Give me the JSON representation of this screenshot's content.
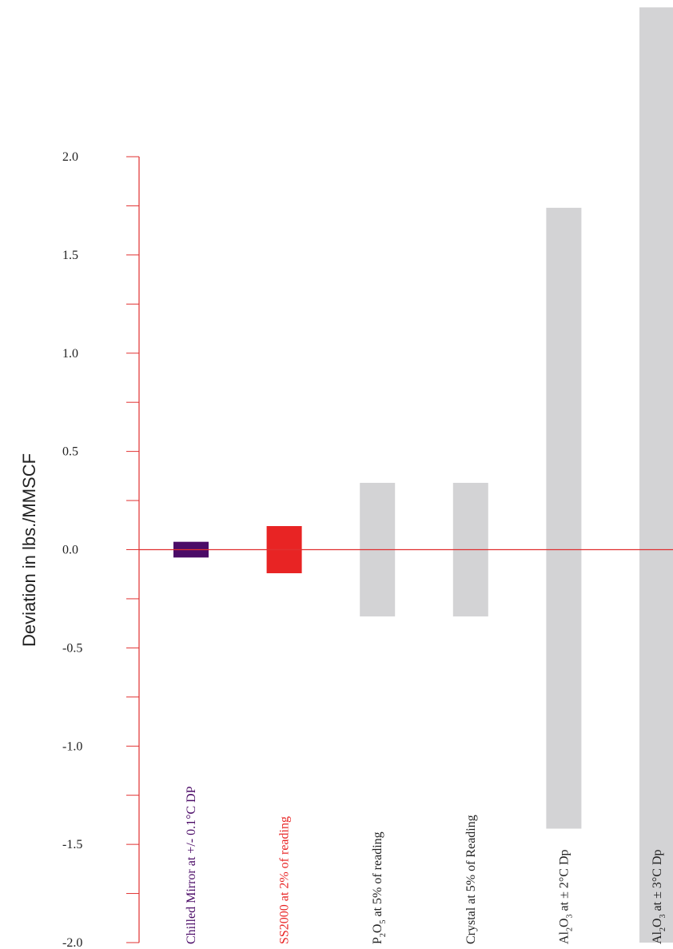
{
  "chart_data": {
    "type": "bar",
    "title": "",
    "xlabel": "",
    "ylabel": "Deviation in lbs./MMSCF",
    "ylim": [
      -2.0,
      2.0
    ],
    "yticks": [
      "2.0",
      "1.5",
      "1.0",
      "0.5",
      "0.0",
      "-0.5",
      "-1.0",
      "-1.5",
      "-2.0"
    ],
    "grid": false,
    "series": [
      {
        "label_parts": [
          {
            "t": "Chilled Mirror at +/- 0.1°C DP"
          }
        ],
        "low": -0.04,
        "high": 0.04,
        "color": "#4b0b67",
        "label_color": "#4b0b67"
      },
      {
        "label_parts": [
          {
            "t": "SS2000 at 2% of reading"
          }
        ],
        "low": -0.12,
        "high": 0.12,
        "color": "#e82424",
        "label_color": "#e82424"
      },
      {
        "label_parts": [
          {
            "t": "P"
          },
          {
            "t": "2",
            "sub": true
          },
          {
            "t": "O"
          },
          {
            "t": "5",
            "sub": true
          },
          {
            "t": " at 5% of reading"
          }
        ],
        "low": -0.34,
        "high": 0.34,
        "color": "#d3d3d5",
        "label_color": "#222222"
      },
      {
        "label_parts": [
          {
            "t": "Crystal at 5% of Reading"
          }
        ],
        "low": -0.34,
        "high": 0.34,
        "color": "#d3d3d5",
        "label_color": "#222222"
      },
      {
        "label_parts": [
          {
            "t": "Al"
          },
          {
            "t": "2",
            "sub": true
          },
          {
            "t": "O"
          },
          {
            "t": "3",
            "sub": true
          },
          {
            "t": " at ± 2°C Dp"
          }
        ],
        "low": -1.42,
        "high": 1.74,
        "color": "#d3d3d5",
        "label_color": "#222222"
      },
      {
        "label_parts": [
          {
            "t": "Al"
          },
          {
            "t": "2",
            "sub": true
          },
          {
            "t": "O"
          },
          {
            "t": "3",
            "sub": true
          },
          {
            "t": " at ± 3°C Dp"
          }
        ],
        "low": -2.0,
        "high": 2.76,
        "color": "#d3d3d5",
        "label_color": "#222222"
      }
    ],
    "axis_color": "#e03030"
  }
}
